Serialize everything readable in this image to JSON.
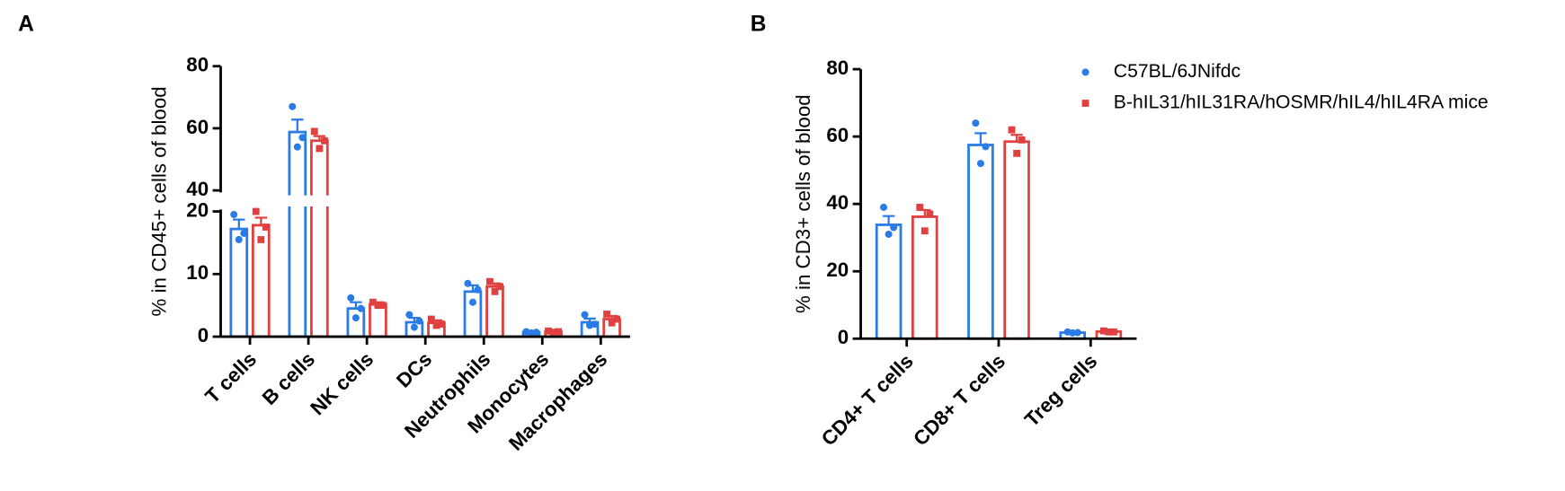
{
  "chart_data": [
    {
      "type": "bar",
      "panel": "A",
      "y_label": "% in CD45+ cells of blood",
      "categories": [
        "T cells",
        "B cells",
        "NK cells",
        "DCs",
        "Neutrophils",
        "Monocytes",
        "Macrophages"
      ],
      "ylim": [
        0,
        80
      ],
      "yticks": [
        0,
        10,
        20,
        40,
        60,
        80
      ],
      "y_break": [
        20,
        40
      ],
      "series": [
        {
          "color": "#2a7be6",
          "values": [
            17.2,
            58.8,
            4.5,
            2.3,
            7.2,
            0.7,
            2.3
          ],
          "errors": [
            1.5,
            4,
            1,
            0.7,
            1,
            0.1,
            0.6
          ],
          "points": [
            [
              19.5,
              16.5,
              15.5
            ],
            [
              67,
              57,
              54
            ],
            [
              6.2,
              4.5,
              3
            ],
            [
              3.5,
              2.5,
              1.5
            ],
            [
              8.5,
              7.5,
              5.5
            ],
            [
              0.8,
              0.7,
              0.6
            ],
            [
              3.5,
              2,
              1.8
            ]
          ]
        },
        {
          "color": "#e04140",
          "values": [
            17.8,
            56,
            5.2,
            2.2,
            8,
            0.8,
            2.8
          ],
          "errors": [
            1.2,
            1.5,
            0.3,
            0.4,
            0.5,
            0.1,
            0.5
          ],
          "points": [
            [
              20,
              17.5,
              15.5
            ],
            [
              59,
              56,
              53.5
            ],
            [
              5.5,
              5,
              5
            ],
            [
              2.8,
              2,
              1.8
            ],
            [
              8.8,
              8,
              7.2
            ],
            [
              0.9,
              0.8,
              0.7
            ],
            [
              3.6,
              2.8,
              2.2
            ]
          ]
        }
      ]
    },
    {
      "type": "bar",
      "panel": "B",
      "y_label": "% in CD3+ cells of blood",
      "categories": [
        "CD4+ T cells",
        "CD8+ T cells",
        "Treg cells"
      ],
      "ylim": [
        0,
        80
      ],
      "yticks": [
        0,
        20,
        40,
        60,
        80
      ],
      "legend": "top-right",
      "series": [
        {
          "name": "C57BL/6JNifdc",
          "color": "#2a7be6",
          "values": [
            33.8,
            57.5,
            1.8
          ],
          "errors": [
            2.6,
            3.5,
            0.2
          ],
          "points": [
            [
              39,
              33,
              31
            ],
            [
              64,
              57,
              52
            ],
            [
              2,
              1.8,
              1.7
            ]
          ]
        },
        {
          "name": "B-hIL31/hIL31RA/hOSMR/hIL4/hIL4RA mice",
          "color": "#e04140",
          "values": [
            36.2,
            58.5,
            2.1
          ],
          "errors": [
            2,
            2,
            0.2
          ],
          "points": [
            [
              39,
              37,
              32
            ],
            [
              62,
              59,
              55
            ],
            [
              2.3,
              2,
              2
            ]
          ]
        }
      ]
    }
  ]
}
